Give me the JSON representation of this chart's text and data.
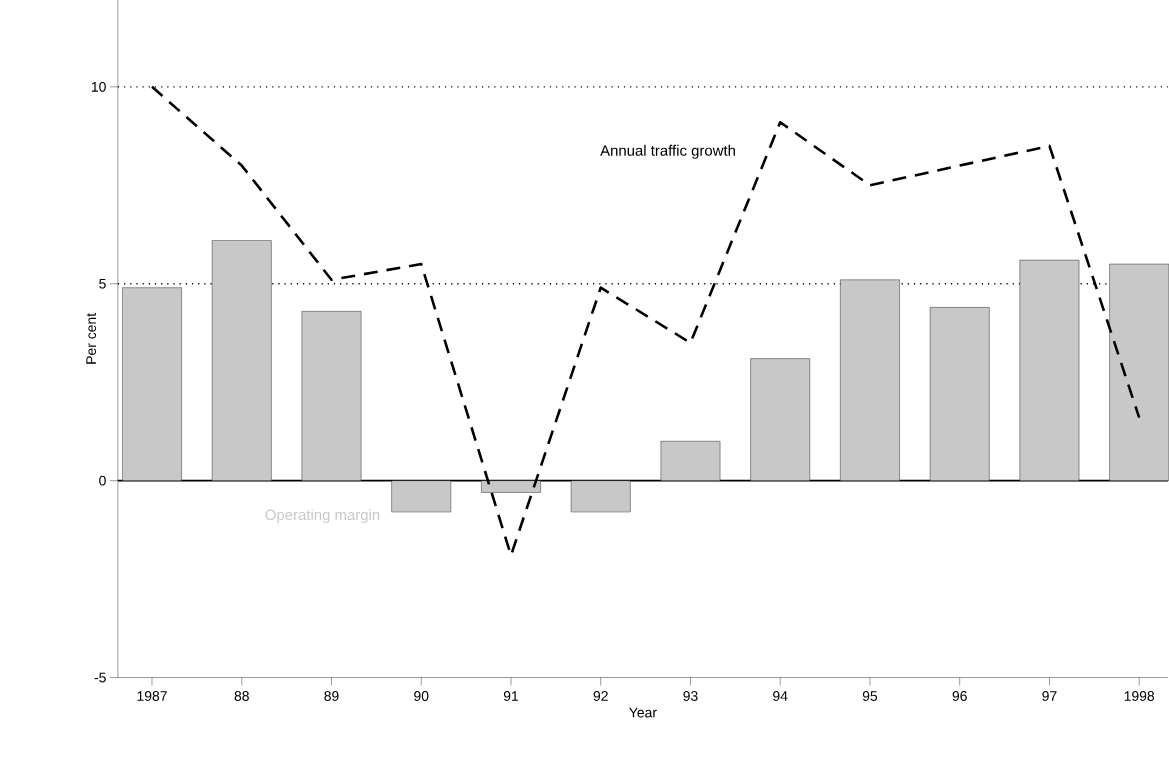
{
  "chart_data": {
    "type": "bar",
    "xlabel": "Year",
    "ylabel": "Per cent",
    "categories": [
      "1987",
      "88",
      "89",
      "90",
      "91",
      "92",
      "93",
      "94",
      "95",
      "96",
      "97",
      "1998"
    ],
    "series": [
      {
        "name": "Operating margin",
        "color": "#c8c8c8",
        "values": [
          4.9,
          6.1,
          4.3,
          -0.8,
          -0.3,
          -0.8,
          1.0,
          3.1,
          5.1,
          4.4,
          5.6,
          5.5
        ]
      },
      {
        "name": "Annual traffic growth",
        "type": "line",
        "color": "#000000",
        "line_style": "dashed",
        "values": [
          10.0,
          8.0,
          5.1,
          5.5,
          -1.9,
          4.9,
          3.5,
          9.1,
          7.5,
          8.0,
          8.5,
          1.6
        ]
      }
    ],
    "ylim": [
      -5,
      12.2
    ],
    "yticks": [
      -5,
      0,
      5,
      10
    ],
    "ref_lines": [
      {
        "axis": "y",
        "value": 0,
        "line_style": "solid"
      },
      {
        "axis": "y",
        "value": 5,
        "line_style": "dotted"
      },
      {
        "axis": "y",
        "value": 10,
        "line_style": "dotted"
      }
    ]
  }
}
